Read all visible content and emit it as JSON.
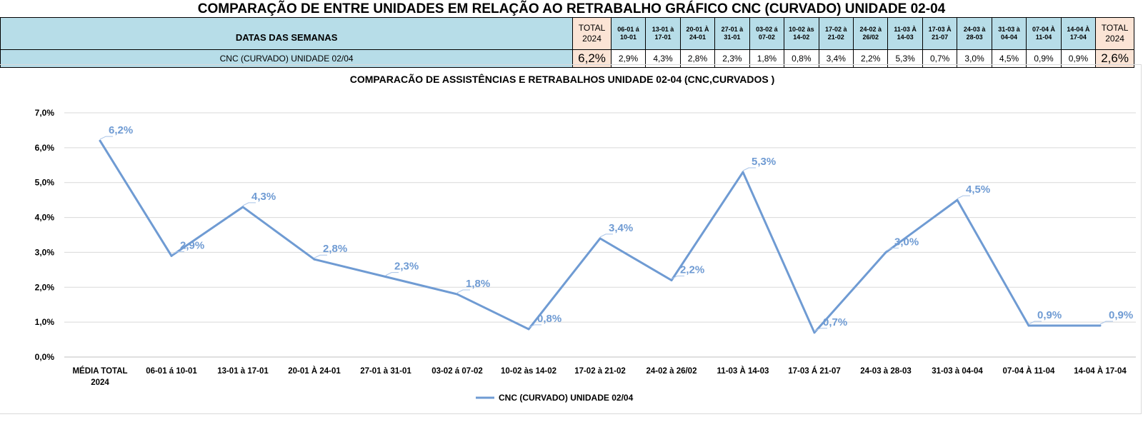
{
  "sheet": {
    "title": "COMPARAÇÃO DE ENTRE UNIDADES EM RELAÇÃO AO RETRABALHO GRÁFICO CNC (CURVADO) UNIDADE 02-04",
    "header_label": "DATAS DAS SEMANAS",
    "row_label": "CNC (CURVADO) UNIDADE 02/04",
    "total_left": {
      "line1": "TOTAL",
      "line2": "2024",
      "value": "6,2%"
    },
    "weeks": [
      {
        "line1": "06-01 á",
        "line2": "10-01",
        "value": "2,9%"
      },
      {
        "line1": "13-01 à",
        "line2": "17-01",
        "value": "4,3%"
      },
      {
        "line1": "20-01 À",
        "line2": "24-01",
        "value": "2,8%"
      },
      {
        "line1": "27-01 à",
        "line2": "31-01",
        "value": "2,3%"
      },
      {
        "line1": "03-02 á",
        "line2": "07-02",
        "value": "1,8%"
      },
      {
        "line1": "10-02 às",
        "line2": "14-02",
        "value": "0,8%"
      },
      {
        "line1": "17-02 à",
        "line2": "21-02",
        "value": "3,4%"
      },
      {
        "line1": "24-02 à",
        "line2": "26/02",
        "value": "2,2%"
      },
      {
        "line1": "11-03 À",
        "line2": "14-03",
        "value": "5,3%"
      },
      {
        "line1": "17-03 À",
        "line2": "21-07",
        "value": "0,7%"
      },
      {
        "line1": "24-03 à",
        "line2": "28-03",
        "value": "3,0%"
      },
      {
        "line1": "31-03 à",
        "line2": "04-04",
        "value": "4,5%"
      },
      {
        "line1": "07-04 À",
        "line2": "11-04",
        "value": "0,9%"
      },
      {
        "line1": "14-04 À",
        "line2": "17-04",
        "value": "0,9%"
      }
    ],
    "total_right": {
      "line1": "TOTAL",
      "line2": "2024",
      "value": "2,6%"
    }
  },
  "chart_data": {
    "type": "line",
    "title": "COMPARACÃO DE ASSISTÊNCIAS E RETRABALHOS UNIDADE 02-04  (CNC,CURVADOS )",
    "xlabel": "",
    "ylabel": "",
    "categories": [
      "MÉDIA TOTAL 2024",
      "06-01 á 10-01",
      "13-01 à 17-01",
      "20-01 À 24-01",
      "27-01 à 31-01",
      "03-02 á 07-02",
      "10-02 às 14-02",
      "17-02 à 21-02",
      "24-02 à 26/02",
      "11-03 À 14-03",
      "17-03 Á 21-07",
      "24-03 à 28-03",
      "31-03 à 04-04",
      "07-04 À 11-04",
      "14-04 À 17-04"
    ],
    "series": [
      {
        "name": "CNC (CURVADO) UNIDADE 02/04",
        "values": [
          6.2,
          2.9,
          4.3,
          2.8,
          2.3,
          1.8,
          0.8,
          3.4,
          2.2,
          5.3,
          0.7,
          3.0,
          4.5,
          0.9,
          0.9
        ],
        "labels": [
          "6,2%",
          "2,9%",
          "4,3%",
          "2,8%",
          "2,3%",
          "1,8%",
          "0,8%",
          "3,4%",
          "2,2%",
          "5,3%",
          "0,7%",
          "3,0%",
          "4,5%",
          "0,9%",
          "0,9%"
        ],
        "color": "#6f9bd3"
      }
    ],
    "ylim": [
      0,
      7
    ],
    "yticks": [
      "0,0%",
      "1,0%",
      "2,0%",
      "3,0%",
      "4,0%",
      "5,0%",
      "6,0%",
      "7,0%"
    ],
    "grid": true,
    "legend": "bottom"
  }
}
